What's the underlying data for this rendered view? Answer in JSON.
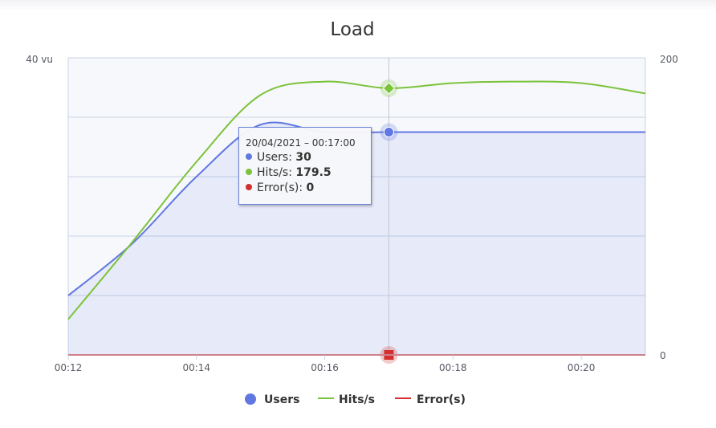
{
  "chart_data": {
    "type": "line",
    "title": "Load",
    "x": [
      "00:12",
      "00:13",
      "00:14",
      "00:15",
      "00:16",
      "00:17",
      "00:18",
      "00:19",
      "00:20",
      "00:21"
    ],
    "x_tick_labels": [
      "00:12",
      "00:14",
      "00:16",
      "00:18",
      "00:20"
    ],
    "xlim": [
      "00:12",
      "00:21"
    ],
    "y_left": {
      "top_label": "40 vu",
      "ylim": [
        0,
        40
      ]
    },
    "y_right": {
      "tick_labels": [
        "200",
        "0"
      ],
      "ylim": [
        0,
        200
      ]
    },
    "series": [
      {
        "name": "Users",
        "axis": "left",
        "kind": "area",
        "color": "#6078e0",
        "values": [
          8,
          15,
          24,
          31,
          30,
          30,
          30,
          30,
          30,
          30
        ]
      },
      {
        "name": "Hits/s",
        "axis": "right",
        "kind": "line",
        "color": "#7cc23a",
        "values": [
          24,
          76,
          130,
          175,
          184,
          179.5,
          183,
          184,
          183,
          176
        ]
      },
      {
        "name": "Error(s)",
        "axis": "right",
        "kind": "line",
        "color": "#d32f2f",
        "values": [
          0,
          0,
          0,
          0,
          0,
          0,
          0,
          0,
          0,
          0
        ]
      }
    ],
    "grid": true,
    "legend_position": "bottom-center",
    "hover": {
      "x": "00:17"
    },
    "tooltip": {
      "header": "20/04/2021 – 00:17:00",
      "rows": [
        {
          "label": "Users",
          "value": "30",
          "color": "#6078e0"
        },
        {
          "label": "Hits/s",
          "value": "179.5",
          "color": "#7cc23a"
        },
        {
          "label": "Error(s)",
          "value": "0",
          "color": "#d32f2f"
        }
      ]
    }
  }
}
